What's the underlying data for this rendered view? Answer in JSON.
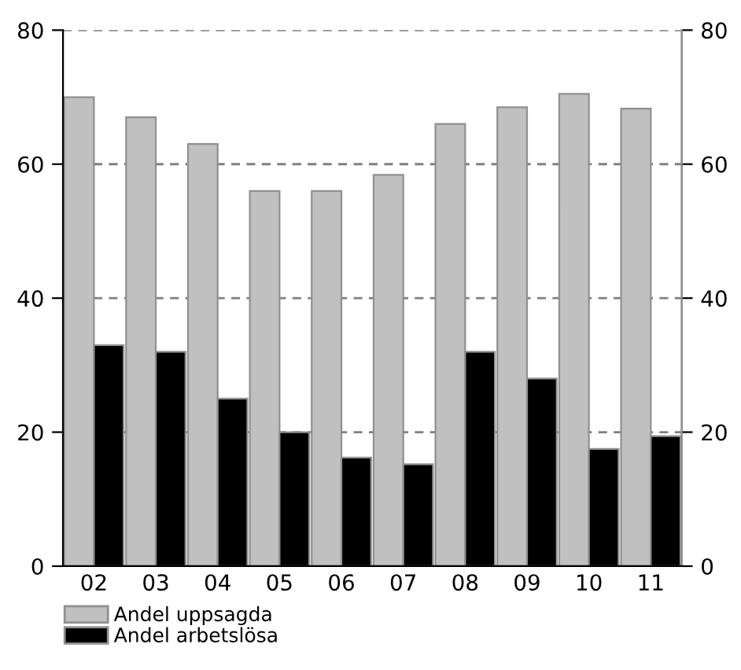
{
  "chart_data": {
    "type": "bar",
    "categories": [
      "02",
      "03",
      "04",
      "05",
      "06",
      "07",
      "08",
      "09",
      "10",
      "11"
    ],
    "series": [
      {
        "name": "Andel uppsagda",
        "color": "#c0c0c0",
        "values": [
          70,
          67,
          63,
          56,
          56,
          58.4,
          66,
          68.5,
          70.5,
          68.3
        ]
      },
      {
        "name": "Andel arbetslösa",
        "color": "#000000",
        "values": [
          33,
          32,
          25,
          20,
          16.2,
          15.2,
          32,
          28,
          17.5,
          19.4
        ]
      }
    ],
    "ylim": [
      0,
      80
    ],
    "yticks": [
      0,
      20,
      40,
      60,
      80
    ],
    "y2lim": [
      0,
      80
    ],
    "y2ticks": [
      0,
      20,
      40,
      60,
      80
    ],
    "grid": "y",
    "legend": "bottom left"
  }
}
